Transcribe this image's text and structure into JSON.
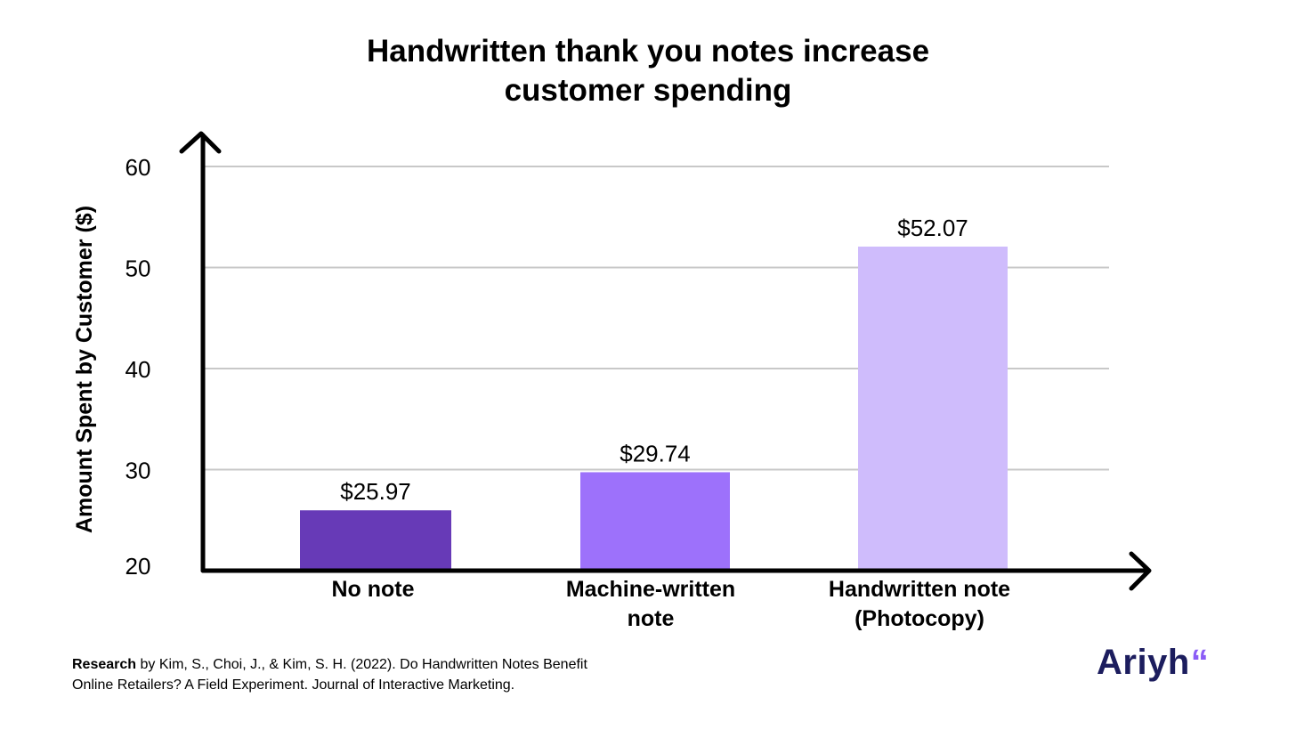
{
  "chart_data": {
    "type": "bar",
    "title_lines": [
      "Handwritten thank you notes increase",
      "customer spending"
    ],
    "xlabel": "",
    "ylabel": "Amount Spent by Customer ($)",
    "ylim": [
      20,
      60
    ],
    "yticks": [
      20,
      30,
      40,
      50,
      60
    ],
    "grid": true,
    "categories": [
      [
        "No note"
      ],
      [
        "Machine-written",
        "note"
      ],
      [
        "Handwritten note",
        "(Photocopy)"
      ]
    ],
    "values": [
      25.97,
      29.74,
      52.07
    ],
    "data_labels": [
      "$25.97",
      "$29.74",
      "$52.07"
    ],
    "colors": [
      "#673ab7",
      "#9d71fb",
      "#cfbcfc"
    ]
  },
  "footer": {
    "research_bold": "Research",
    "research_text_line1": " by Kim, S., Choi, J., & Kim, S. H. (2022). Do Handwritten Notes Benefit",
    "research_text_line2": "Online Retailers? A Field Experiment. Journal of Interactive Marketing."
  },
  "brand": {
    "name": "Ariyh",
    "mark": "“",
    "name_color": "#1c1d5e",
    "mark_color": "#8b5cf6"
  }
}
